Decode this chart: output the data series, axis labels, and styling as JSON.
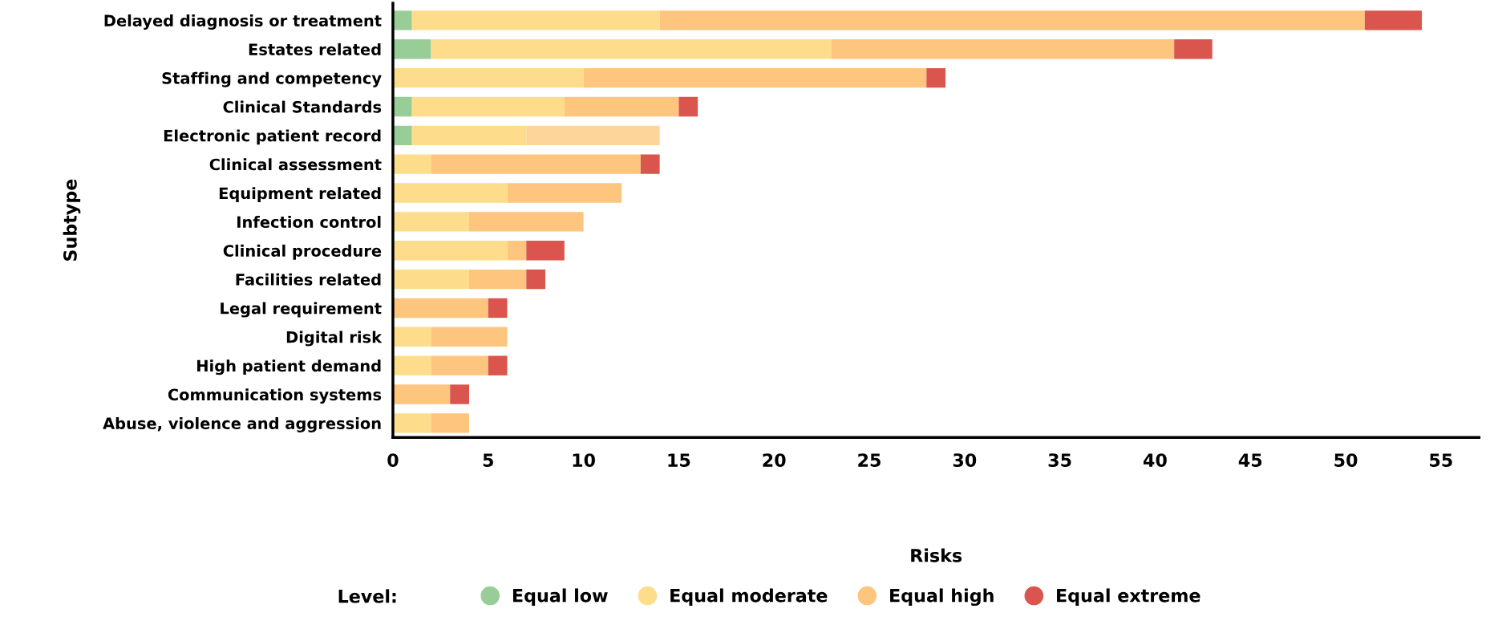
{
  "chart_data": {
    "type": "bar",
    "orientation": "horizontal",
    "stacked": true,
    "xlabel": "Risks",
    "ylabel": "Subtype",
    "legend_title": "Level:",
    "legend": "bottom",
    "grid": false,
    "categories": [
      "Delayed diagnosis or treatment",
      "Estates related",
      "Staffing and competency",
      "Clinical Standards",
      "Electronic patient record",
      "Clinical assessment",
      "Equipment related",
      "Infection control",
      "Clinical procedure",
      "Facilities related",
      "Legal requirement",
      "Digital risk",
      "High patient demand",
      "Communication systems",
      "Abuse, violence and aggression"
    ],
    "series": [
      {
        "name": "Equal low",
        "color": "#98cd98",
        "values": [
          1,
          2,
          0,
          1,
          1,
          0,
          0,
          0,
          0,
          0,
          0,
          0,
          0,
          0,
          0
        ]
      },
      {
        "name": "Equal moderate",
        "color": "#fddd8b",
        "values": [
          13,
          21,
          10,
          8,
          6,
          2,
          6,
          4,
          6,
          4,
          0,
          2,
          2,
          0,
          2
        ]
      },
      {
        "name": "Equal high",
        "color": "#fdc57e",
        "colors": [
          "#fdc57e",
          "#fdc57e",
          "#fdc57e",
          "#fdc57e",
          "#fdd49a",
          "#fdc57e",
          "#fdc57e",
          "#fdc57e",
          "#fdc57e",
          "#fdc57e",
          "#fdc57e",
          "#fdc57e",
          "#fdc57e",
          "#fdc57e",
          "#fdc57e"
        ],
        "values": [
          37,
          18,
          18,
          6,
          7,
          11,
          6,
          6,
          1,
          3,
          5,
          4,
          3,
          3,
          2
        ]
      },
      {
        "name": "Equal extreme",
        "color": "#da554d",
        "values": [
          3,
          2,
          1,
          1,
          0,
          1,
          0,
          0,
          2,
          1,
          1,
          0,
          1,
          1,
          0
        ]
      }
    ],
    "xlim": [
      0,
      57
    ],
    "xticks": [
      0,
      5,
      10,
      15,
      20,
      25,
      30,
      35,
      40,
      45,
      50,
      55
    ]
  }
}
